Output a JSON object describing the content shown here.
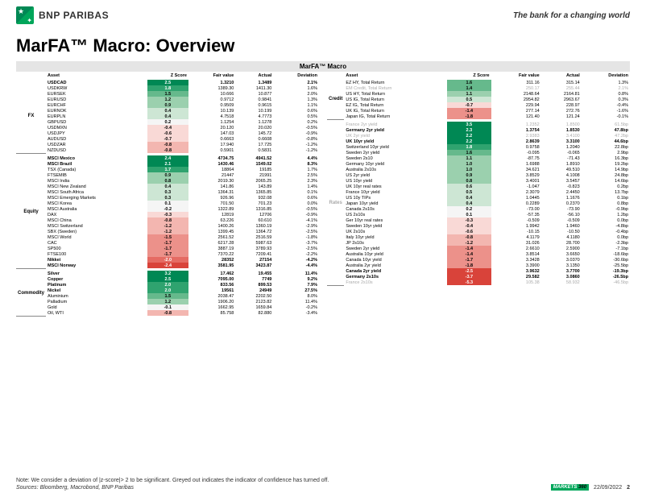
{
  "brand": "BNP PARIBAS",
  "tagline": "The bank for a changing world",
  "title": "MarFA™ Macro: Overview",
  "panel_title": "MarFA™ Macro",
  "headers": [
    "Asset",
    "Z Score",
    "Fair value",
    "Actual",
    "Deviation"
  ],
  "note": "Note: We consider a deviation of |z-score|> 2  to be significant. Greyed out indicates the indicator of confidence has turned off.",
  "sources": "Sources: Bloomberg, Macrobond, BNP Paribas",
  "date": "22/09/2022",
  "page": "2",
  "markets_label": "MARKETS",
  "markets_num": "360",
  "z_colors": {
    "g5": "#008854",
    "g4": "#2fa36f",
    "g3": "#66b98c",
    "g2": "#9bd0ae",
    "g1": "#cde6d4",
    "n": "#f5f5f5",
    "r1": "#f9d9d6",
    "r2": "#f3b6b0",
    "r3": "#ec918a",
    "r4": "#e56b63",
    "r5": "#d9433a"
  },
  "left": [
    {
      "cat": "FX",
      "rows": [
        {
          "a": "USDCAD",
          "z": "2.5",
          "zc": "g5",
          "fv": "1.3210",
          "ac": "1.3489",
          "dv": "2.1%",
          "b": 1
        },
        {
          "a": "USDKRW",
          "z": "1.8",
          "zc": "g4",
          "fv": "1389.30",
          "ac": "1411.30",
          "dv": "1.6%"
        },
        {
          "a": "EURSEK",
          "z": "1.5",
          "zc": "g3",
          "fv": "10.666",
          "ac": "10.877",
          "dv": "2.0%"
        },
        {
          "a": "EURUSD",
          "z": "1.2",
          "zc": "g2",
          "fv": "0.9712",
          "ac": "0.9841",
          "dv": "1.3%"
        },
        {
          "a": "EURCHF",
          "z": "0.9",
          "zc": "g2",
          "fv": "0.9509",
          "ac": "0.9615",
          "dv": "1.1%"
        },
        {
          "a": "EURNOK",
          "z": "0.4",
          "zc": "g1",
          "fv": "10.139",
          "ac": "10.199",
          "dv": "0.6%"
        },
        {
          "a": "EURPLN",
          "z": "0.4",
          "zc": "g1",
          "fv": "4.7518",
          "ac": "4.7773",
          "dv": "0.5%"
        },
        {
          "a": "GBPUSD",
          "z": "0.2",
          "zc": "n",
          "fv": "1.1254",
          "ac": "1.1278",
          "dv": "0.2%"
        },
        {
          "a": "USDMXN",
          "z": "-0.4",
          "zc": "r1",
          "fv": "20.120",
          "ac": "20.020",
          "dv": "-0.5%"
        },
        {
          "a": "USDJPY",
          "z": "-0.6",
          "zc": "r1",
          "fv": "147.03",
          "ac": "145.72",
          "dv": "-0.9%"
        },
        {
          "a": "AUDUSD",
          "z": "-0.7",
          "zc": "r1",
          "fv": "0.6663",
          "ac": "0.6608",
          "dv": "-0.8%"
        },
        {
          "a": "USDZAR",
          "z": "-0.8",
          "zc": "r2",
          "fv": "17.940",
          "ac": "17.725",
          "dv": "-1.2%"
        },
        {
          "a": "NZDUSD",
          "z": "-0.8",
          "zc": "r2",
          "fv": "0.5901",
          "ac": "0.5831",
          "dv": "-1.2%"
        }
      ]
    },
    {
      "cat": "Equity",
      "rows": [
        {
          "a": "MSCI Mexico",
          "z": "2.4",
          "zc": "g5",
          "fv": "4734.75",
          "ac": "4941.52",
          "dv": "4.4%",
          "b": 1
        },
        {
          "a": "MSCI Brazil",
          "z": "2.1",
          "zc": "g5",
          "fv": "1430.46",
          "ac": "1549.02",
          "dv": "8.3%",
          "b": 1
        },
        {
          "a": "TSX (Canada)",
          "z": "1.7",
          "zc": "g4",
          "fv": "18864",
          "ac": "19185",
          "dv": "1.7%"
        },
        {
          "a": "FTSEMIB",
          "z": "0.9",
          "zc": "g2",
          "fv": "21447",
          "ac": "21991",
          "dv": "2.5%"
        },
        {
          "a": "MSCI India",
          "z": "0.8",
          "zc": "g2",
          "fv": "2019.30",
          "ac": "2065.25",
          "dv": "2.3%"
        },
        {
          "a": "MSCI New Zealand",
          "z": "0.4",
          "zc": "g1",
          "fv": "141.86",
          "ac": "143.89",
          "dv": "1.4%"
        },
        {
          "a": "MSCI South Africa",
          "z": "0.3",
          "zc": "g1",
          "fv": "1364.31",
          "ac": "1365.85",
          "dv": "0.1%"
        },
        {
          "a": "MSCI Emerging Markets",
          "z": "0.3",
          "zc": "g1",
          "fv": "926.96",
          "ac": "932.08",
          "dv": "0.6%"
        },
        {
          "a": "MSCI Korea",
          "z": "0.1",
          "zc": "n",
          "fv": "701.50",
          "ac": "701.23",
          "dv": "0.0%"
        },
        {
          "a": "MSCI Australia",
          "z": "-0.2",
          "zc": "n",
          "fv": "1322.89",
          "ac": "1316.85",
          "dv": "-0.5%"
        },
        {
          "a": "DAX",
          "z": "-0.3",
          "zc": "r1",
          "fv": "12819",
          "ac": "12706",
          "dv": "-0.9%"
        },
        {
          "a": "MSCI China",
          "z": "-0.8",
          "zc": "r2",
          "fv": "63.226",
          "ac": "60.610",
          "dv": "-4.1%"
        },
        {
          "a": "MSCI Switzerland",
          "z": "-1.2",
          "zc": "r2",
          "fv": "1400.26",
          "ac": "1360.19",
          "dv": "-2.9%"
        },
        {
          "a": "SBX (Sweden)",
          "z": "-1.2",
          "zc": "r2",
          "fv": "1399.45",
          "ac": "1364.72",
          "dv": "-2.5%"
        },
        {
          "a": "MSCI World",
          "z": "-1.5",
          "zc": "r3",
          "fv": "2561.52",
          "ac": "2516.59",
          "dv": "-1.8%"
        },
        {
          "a": "CAC",
          "z": "-1.7",
          "zc": "r3",
          "fv": "6217.28",
          "ac": "5987.63",
          "dv": "-3.7%"
        },
        {
          "a": "SP500",
          "z": "-1.7",
          "zc": "r3",
          "fv": "3887.19",
          "ac": "3789.93",
          "dv": "-2.5%"
        },
        {
          "a": "FTSE100",
          "z": "-1.7",
          "zc": "r3",
          "fv": "7370.22",
          "ac": "7209.41",
          "dv": "-2.2%"
        },
        {
          "a": "Nikkei",
          "z": "-2.0",
          "zc": "r4",
          "fv": "28352",
          "ac": "27154",
          "dv": "-4.2%",
          "b": 1
        },
        {
          "a": "MSCI Norway",
          "z": "-2.4",
          "zc": "r5",
          "fv": "3581.95",
          "ac": "3423.87",
          "dv": "-4.4%",
          "b": 1
        }
      ]
    },
    {
      "cat": "Commodity",
      "rows": [
        {
          "a": "Silver",
          "z": "3.2",
          "zc": "g5",
          "fv": "17.462",
          "ac": "19.455",
          "dv": "11.4%",
          "b": 1
        },
        {
          "a": "Copper",
          "z": "2.5",
          "zc": "g5",
          "fv": "7095.00",
          "ac": "7749",
          "dv": "9.2%",
          "b": 1
        },
        {
          "a": "Platinum",
          "z": "2.0",
          "zc": "g4",
          "fv": "833.56",
          "ac": "899.53",
          "dv": "7.9%",
          "b": 1
        },
        {
          "a": "Nickel",
          "z": "2.0",
          "zc": "g4",
          "fv": "19561",
          "ac": "24949",
          "dv": "27.5%",
          "b": 1
        },
        {
          "a": "Aluminium",
          "z": "1.5",
          "zc": "g3",
          "fv": "2038.47",
          "ac": "2202.50",
          "dv": "8.0%"
        },
        {
          "a": "Palladium",
          "z": "1.2",
          "zc": "g2",
          "fv": "1906.20",
          "ac": "2123.82",
          "dv": "11.4%"
        },
        {
          "a": "Gold",
          "z": "-0.1",
          "zc": "n",
          "fv": "1662.95",
          "ac": "1659.84",
          "dv": "-0.2%"
        },
        {
          "a": "Oil, WTI",
          "z": "-0.8",
          "zc": "r2",
          "fv": "85.758",
          "ac": "82.880",
          "dv": "-3.4%"
        }
      ]
    }
  ],
  "right": [
    {
      "cat": "Credit",
      "rows": [
        {
          "a": "EZ HY, Total Return",
          "z": "1.6",
          "zc": "g3",
          "fv": "311.16",
          "ac": "315.14",
          "dv": "1.3%"
        },
        {
          "a": "EM Credit, Total Return",
          "z": "1.4",
          "zc": "g3",
          "fv": "250.17",
          "ac": "255.44",
          "dv": "2.1%",
          "g": 1
        },
        {
          "a": "US HY, Total Return",
          "z": "1.1",
          "zc": "g2",
          "fv": "2148.64",
          "ac": "2164.81",
          "dv": "0.8%"
        },
        {
          "a": "US IG, Total Return",
          "z": "0.5",
          "zc": "g1",
          "fv": "2954.82",
          "ac": "2963.67",
          "dv": "0.3%"
        },
        {
          "a": "EZ IG, Total Return",
          "z": "-0.7",
          "zc": "r1",
          "fv": "229.94",
          "ac": "228.97",
          "dv": "-0.4%"
        },
        {
          "a": "UK IG, Total Return",
          "z": "-1.4",
          "zc": "r3",
          "fv": "277.14",
          "ac": "272.76",
          "dv": "-1.6%"
        },
        {
          "a": "Japan IG, Total Return",
          "z": "-1.8",
          "zc": "r3",
          "fv": "121.40",
          "ac": "121.24",
          "dv": "-0.1%"
        }
      ]
    },
    {
      "cat": "Rates",
      "rows": [
        {
          "a": "France 2yr yield",
          "z": "3.5",
          "zc": "g5",
          "fv": "1.2352",
          "ac": "1.8500",
          "dv": "61.5bp",
          "g": 1
        },
        {
          "a": "Germany 2yr yield",
          "z": "2.3",
          "zc": "g5",
          "fv": "1.3754",
          "ac": "1.8530",
          "dv": "47.8bp",
          "b": 1
        },
        {
          "a": "UK 2yr yield",
          "z": "2.2",
          "zc": "g5",
          "fv": "2.9383",
          "ac": "3.4100",
          "dv": "47.2bp",
          "g": 1
        },
        {
          "a": "UK 10yr yield",
          "z": "2.2",
          "zc": "g5",
          "fv": "2.8639",
          "ac": "3.3100",
          "dv": "44.6bp",
          "b": 1
        },
        {
          "a": "Switzerland 10yr yield",
          "z": "1.8",
          "zc": "g4",
          "fv": "0.9758",
          "ac": "1.2040",
          "dv": "22.8bp"
        },
        {
          "a": "Sweden 2yr yield",
          "z": "1.6",
          "zc": "g3",
          "fv": "-0.095",
          "ac": "-0.065",
          "dv": "2.9bp"
        },
        {
          "a": "Sweden 2s10",
          "z": "1.1",
          "zc": "g2",
          "fv": "-87.75",
          "ac": "-71.43",
          "dv": "16.3bp"
        },
        {
          "a": "Germany 10yr yield",
          "z": "1.0",
          "zc": "g2",
          "fv": "1.6988",
          "ac": "1.8910",
          "dv": "19.2bp"
        },
        {
          "a": "Australia 2s10s",
          "z": "1.0",
          "zc": "g2",
          "fv": "34.621",
          "ac": "49.510",
          "dv": "14.9bp"
        },
        {
          "a": "US 2yr yield",
          "z": "0.9",
          "zc": "g2",
          "fv": "3.8529",
          "ac": "4.1008",
          "dv": "24.8bp"
        },
        {
          "a": "US 10yr yield",
          "z": "0.8",
          "zc": "g2",
          "fv": "3.4001",
          "ac": "3.5457",
          "dv": "14.6bp"
        },
        {
          "a": "UK 10yr real rates",
          "z": "0.6",
          "zc": "g1",
          "fv": "-1.047",
          "ac": "-0.823",
          "dv": "0.2bp"
        },
        {
          "a": "France 10yr yield",
          "z": "0.5",
          "zc": "g1",
          "fv": "2.3079",
          "ac": "2.4450",
          "dv": "13.7bp"
        },
        {
          "a": "US 10y TIPs",
          "z": "0.4",
          "zc": "g1",
          "fv": "1.0445",
          "ac": "1.1676",
          "dv": "0.1bp"
        },
        {
          "a": "Japan 10yr yield",
          "z": "0.4",
          "zc": "g1",
          "fv": "0.2289",
          "ac": "0.2370",
          "dv": "0.8bp"
        },
        {
          "a": "Canada  2s10s",
          "z": "0.2",
          "zc": "n",
          "fv": "-73.00",
          "ac": "-73.90",
          "dv": "-0.9bp"
        },
        {
          "a": "US 2s10s",
          "z": "0.1",
          "zc": "n",
          "fv": "-57.35",
          "ac": "-56.10",
          "dv": "1.2bp"
        },
        {
          "a": "Ger 10yr real rates",
          "z": "-0.3",
          "zc": "r1",
          "fv": "-0.509",
          "ac": "-0.509",
          "dv": "0.0bp"
        },
        {
          "a": "Sweden 10yr yield",
          "z": "-0.4",
          "zc": "r1",
          "fv": "1.9942",
          "ac": "1.9460",
          "dv": "-4.8bp"
        },
        {
          "a": "UK  2s10s",
          "z": "-0.6",
          "zc": "r1",
          "fv": "-10.15",
          "ac": "-10.50",
          "dv": "-0.4bp"
        },
        {
          "a": "Italy 10yr yield",
          "z": "-0.8",
          "zc": "r2",
          "fv": "4.1179",
          "ac": "4.1180",
          "dv": "0.0bp"
        },
        {
          "a": "JP 2s10s",
          "z": "-1.2",
          "zc": "r2",
          "fv": "31.026",
          "ac": "28.700",
          "dv": "-2.3bp"
        },
        {
          "a": "Sweden 2yr yield",
          "z": "-1.4",
          "zc": "r3",
          "fv": "2.6610",
          "ac": "2.5900",
          "dv": "-7.1bp"
        },
        {
          "a": "Australia 10yr yield",
          "z": "-1.4",
          "zc": "r3",
          "fv": "3.8514",
          "ac": "3.6650",
          "dv": "-18.6bp"
        },
        {
          "a": "Canada 10yr yield",
          "z": "-1.7",
          "zc": "r3",
          "fv": "3.3428",
          "ac": "3.0370",
          "dv": "-30.6bp"
        },
        {
          "a": "Australia 2yr yield",
          "z": "-1.8",
          "zc": "r3",
          "fv": "3.3900",
          "ac": "3.1350",
          "dv": "-25.5bp"
        },
        {
          "a": "Canada 2yr yield",
          "z": "-2.5",
          "zc": "r5",
          "fv": "3.9632",
          "ac": "3.7700",
          "dv": "-19.3bp",
          "b": 1
        },
        {
          "a": "Germany  2s10s",
          "z": "-3.7",
          "zc": "r5",
          "fv": "29.582",
          "ac": "3.0860",
          "dv": "-26.5bp",
          "b": 1
        },
        {
          "a": "France 2s10s",
          "z": "-5.3",
          "zc": "r5",
          "fv": "105.38",
          "ac": "58.932",
          "dv": "-46.5bp",
          "g": 1
        }
      ]
    }
  ]
}
